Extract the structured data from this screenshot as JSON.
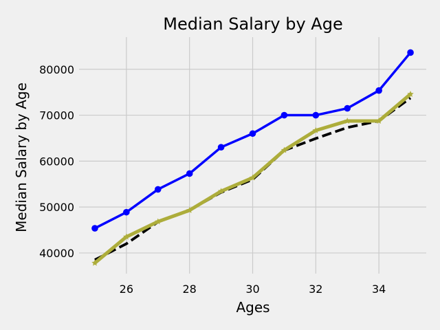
{
  "chart_data": {
    "type": "line",
    "title": "Median Salary by Age",
    "xlabel": "Ages",
    "ylabel": "Median Salary by Age",
    "xlim": [
      24.5,
      35.5
    ],
    "ylim": [
      35500,
      87000
    ],
    "x_ticks": [
      26,
      28,
      30,
      32,
      34
    ],
    "y_ticks": [
      40000,
      50000,
      60000,
      70000,
      80000
    ],
    "grid": true,
    "x": [
      25,
      26,
      27,
      28,
      29,
      30,
      31,
      32,
      33,
      34,
      35
    ],
    "series": [
      {
        "color": "#0000ff",
        "line_style": "solid",
        "marker": "circle",
        "values": [
          45372,
          48876,
          53850,
          57287,
          63016,
          65998,
          70003,
          70000,
          71496,
          75370,
          83640
        ]
      },
      {
        "color": "#000000",
        "line_style": "dashed",
        "marker": "none",
        "values": [
          38496,
          42000,
          46752,
          49320,
          53200,
          56000,
          62316,
          64928,
          67317,
          68748,
          73752
        ]
      },
      {
        "color": "#adad3b",
        "line_style": "solid",
        "marker": "star",
        "values": [
          37810,
          43515,
          46823,
          49293,
          53437,
          56373,
          62375,
          66674,
          68745,
          68746,
          74583
        ]
      }
    ]
  }
}
